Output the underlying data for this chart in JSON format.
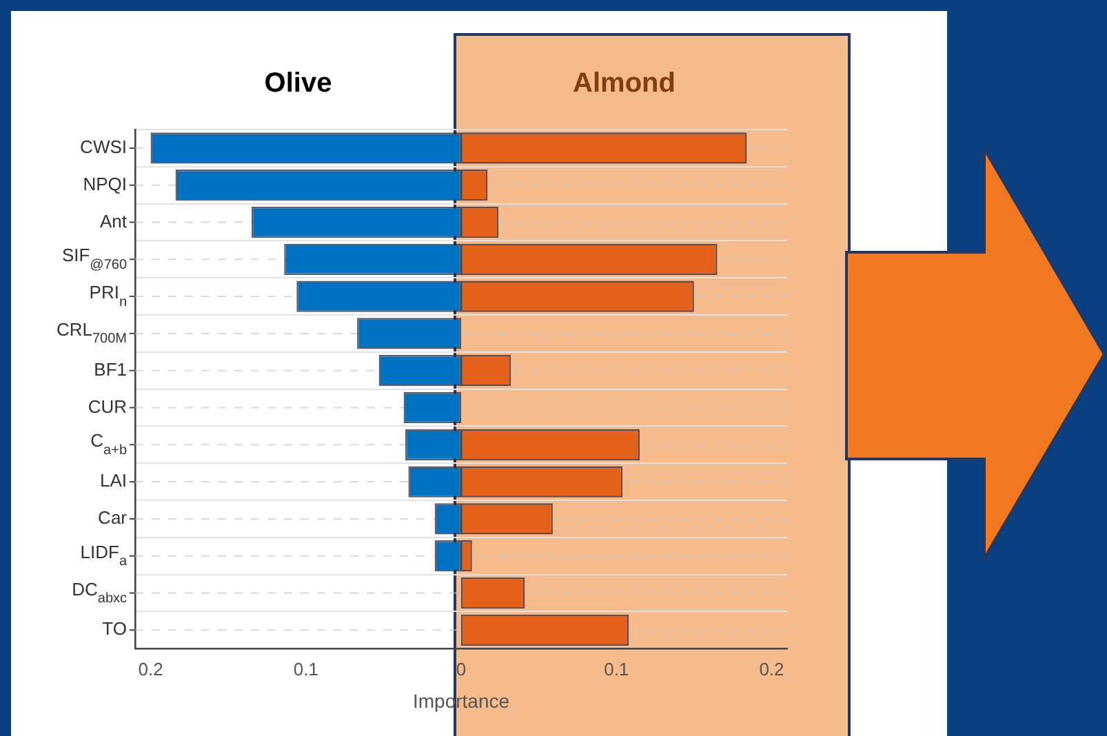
{
  "chart_data": {
    "type": "bar",
    "orientation": "horizontal",
    "stacked": true,
    "xlabel": "Importance",
    "categories": [
      "CWSI",
      "NPQI",
      "Ant",
      "SIF$_{@760}$",
      "PRI$_{n}$",
      "CRL$_{700M}$",
      "BF1",
      "CUR",
      "C$_{a+b}$",
      "LAI",
      "Car",
      "LIDF$_{a}$",
      "DC$_{abxc}$",
      "TO"
    ],
    "series": [
      {
        "name": "Olive",
        "color": "#0070c0",
        "values": [
          -0.2,
          -0.184,
          -0.135,
          -0.114,
          -0.106,
          -0.067,
          -0.053,
          -0.037,
          -0.036,
          -0.034,
          -0.017,
          -0.017,
          0,
          0
        ]
      },
      {
        "name": "Almond",
        "color": "#e3611a",
        "values": [
          0.184,
          0.017,
          0.024,
          0.165,
          0.15,
          0,
          0.032,
          0,
          0.115,
          0.104,
          0.059,
          0.007,
          0.041,
          0.108
        ]
      }
    ],
    "xlim": [
      -0.21,
      0.21
    ],
    "xticks": [
      {
        "value": -0.2,
        "label": "0.2"
      },
      {
        "value": -0.1,
        "label": "0.1"
      },
      0,
      0.1,
      0.2
    ],
    "grid": "y",
    "legend": false
  }
}
